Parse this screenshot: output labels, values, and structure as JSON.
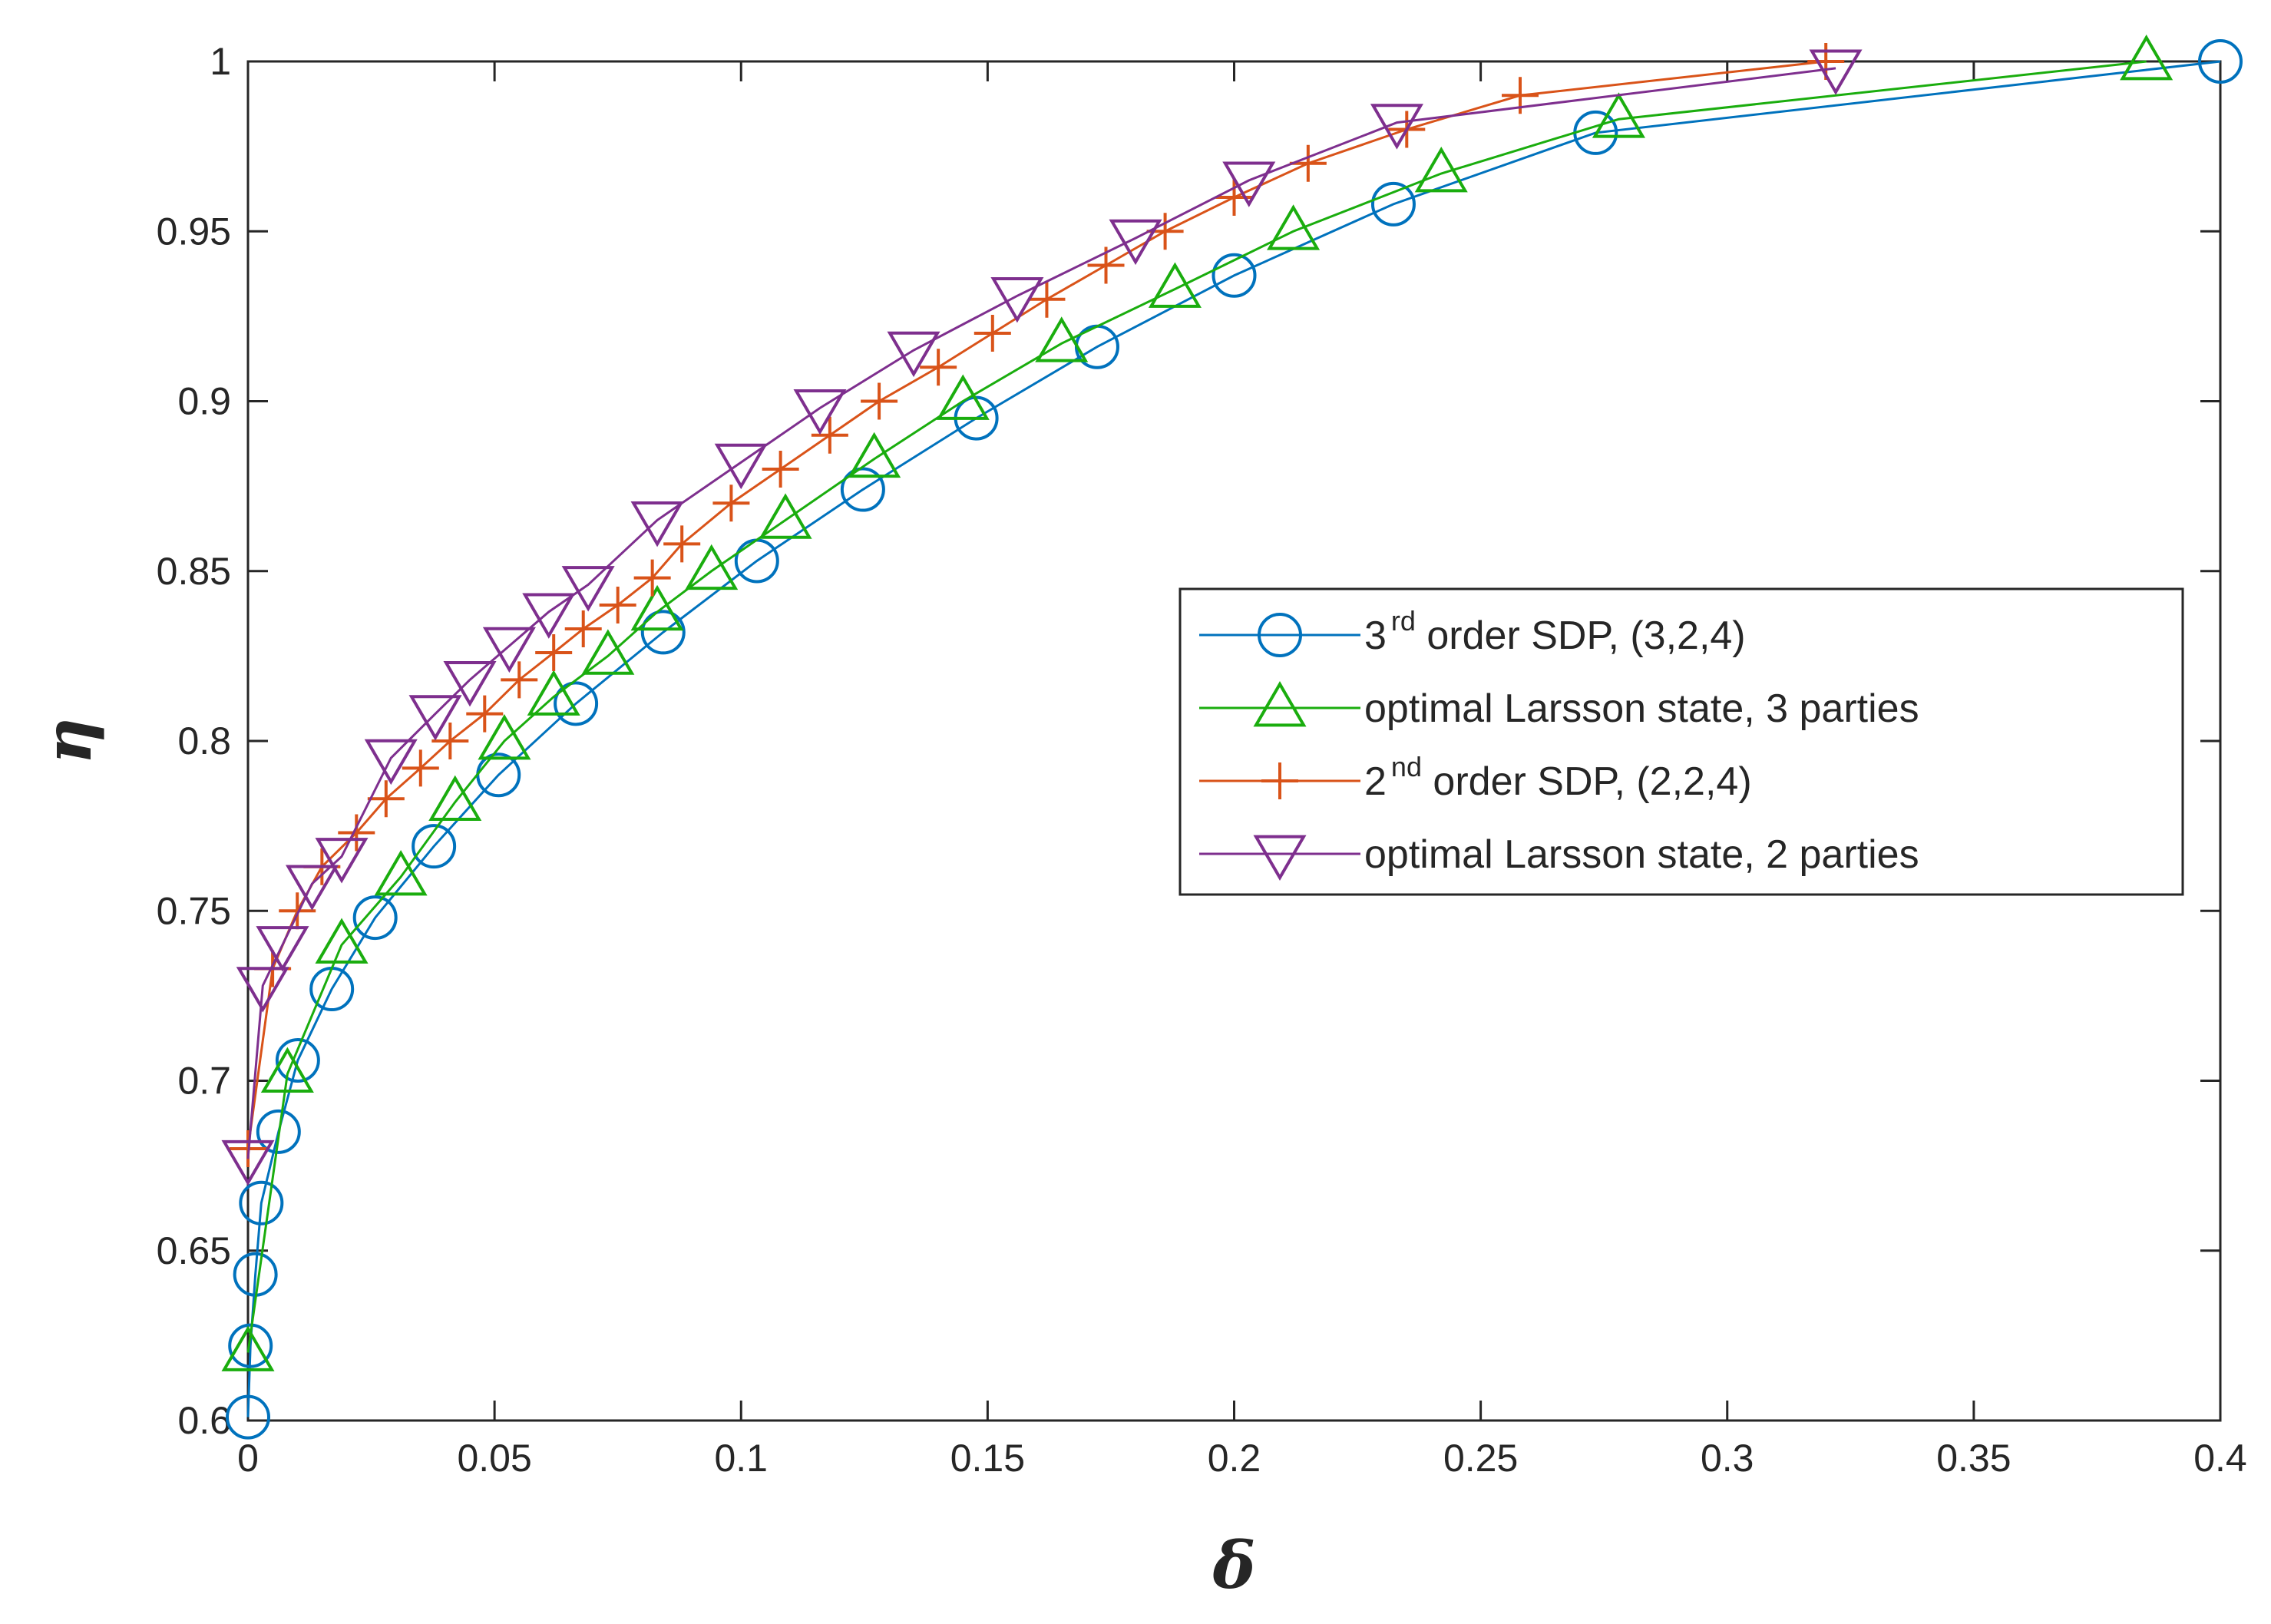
{
  "chart_data": {
    "type": "line",
    "title": "",
    "xlabel": "δ",
    "ylabel": "η",
    "xlim": [
      0,
      0.4
    ],
    "ylim": [
      0.6,
      1.0
    ],
    "grid": false,
    "legend_position": "center-right",
    "xticks": [
      0,
      0.05,
      0.1,
      0.15,
      0.2,
      0.25,
      0.3,
      0.35,
      0.4
    ],
    "xtick_labels": [
      "0",
      "0.05",
      "0.1",
      "0.15",
      "0.2",
      "0.25",
      "0.3",
      "0.35",
      "0.4"
    ],
    "yticks": [
      0.6,
      0.65,
      0.7,
      0.75,
      0.8,
      0.85,
      0.9,
      0.95,
      1.0
    ],
    "ytick_labels": [
      "0.6",
      "0.65",
      "0.7",
      "0.75",
      "0.8",
      "0.85",
      "0.9",
      "0.95",
      "1"
    ],
    "series": [
      {
        "name": "3rd order SDP, (3,2,4)",
        "label_prefix": "3",
        "label_sup": "rd",
        "label_suffix": " order SDP, (3,2,4)",
        "color": "#0072BD",
        "marker": "circle",
        "x": [
          0,
          0.0005,
          0.0015,
          0.0027,
          0.0062,
          0.0101,
          0.017,
          0.0258,
          0.0377,
          0.0508,
          0.0665,
          0.0842,
          0.1032,
          0.1247,
          0.1477,
          0.1722,
          0.2,
          0.2323,
          0.2733,
          0.4
        ],
        "y": [
          0.601,
          0.622,
          0.643,
          0.664,
          0.685,
          0.706,
          0.727,
          0.748,
          0.769,
          0.79,
          0.811,
          0.832,
          0.853,
          0.874,
          0.895,
          0.916,
          0.937,
          0.958,
          0.979,
          1.0
        ]
      },
      {
        "name": "optimal Larsson state, 3 parties",
        "label_prefix": "optimal Larsson state, 3 parties",
        "label_sup": "",
        "label_suffix": "",
        "color": "#1AAD0E",
        "marker": "triangle-up",
        "x": [
          0,
          0.008,
          0.019,
          0.031,
          0.042,
          0.052,
          0.062,
          0.073,
          0.083,
          0.094,
          0.109,
          0.127,
          0.145,
          0.165,
          0.188,
          0.212,
          0.242,
          0.278,
          0.385
        ],
        "y": [
          0.62,
          0.702,
          0.74,
          0.76,
          0.782,
          0.8,
          0.813,
          0.825,
          0.838,
          0.85,
          0.865,
          0.883,
          0.9,
          0.917,
          0.933,
          0.95,
          0.967,
          0.983,
          1.0
        ]
      },
      {
        "name": "2nd order SDP, (2,2,4)",
        "label_prefix": "2",
        "label_sup": "nd",
        "label_suffix": " order SDP, (2,2,4)",
        "color": "#D95319",
        "marker": "plus",
        "x": [
          0,
          0.005,
          0.01,
          0.015,
          0.022,
          0.028,
          0.035,
          0.041,
          0.048,
          0.055,
          0.062,
          0.068,
          0.075,
          0.082,
          0.088,
          0.098,
          0.108,
          0.118,
          0.128,
          0.14,
          0.151,
          0.162,
          0.174,
          0.186,
          0.2,
          0.215,
          0.235,
          0.258,
          0.32
        ],
        "y": [
          0.68,
          0.733,
          0.75,
          0.763,
          0.773,
          0.783,
          0.792,
          0.8,
          0.808,
          0.818,
          0.826,
          0.833,
          0.84,
          0.848,
          0.858,
          0.87,
          0.88,
          0.89,
          0.9,
          0.91,
          0.92,
          0.93,
          0.94,
          0.95,
          0.96,
          0.97,
          0.98,
          0.99,
          1.0
        ]
      },
      {
        "name": "optimal Larsson state, 2 parties",
        "label_prefix": "optimal Larsson state, 2 parties",
        "label_sup": "",
        "label_suffix": "",
        "color": "#7E2F8E",
        "marker": "triangle-down",
        "x": [
          0,
          0.003,
          0.007,
          0.013,
          0.019,
          0.029,
          0.038,
          0.045,
          0.053,
          0.061,
          0.069,
          0.083,
          0.1,
          0.116,
          0.135,
          0.156,
          0.18,
          0.203,
          0.233,
          0.322
        ],
        "y": [
          0.677,
          0.728,
          0.74,
          0.758,
          0.766,
          0.795,
          0.808,
          0.818,
          0.828,
          0.838,
          0.846,
          0.865,
          0.882,
          0.898,
          0.915,
          0.931,
          0.948,
          0.965,
          0.982,
          0.998
        ]
      }
    ]
  }
}
